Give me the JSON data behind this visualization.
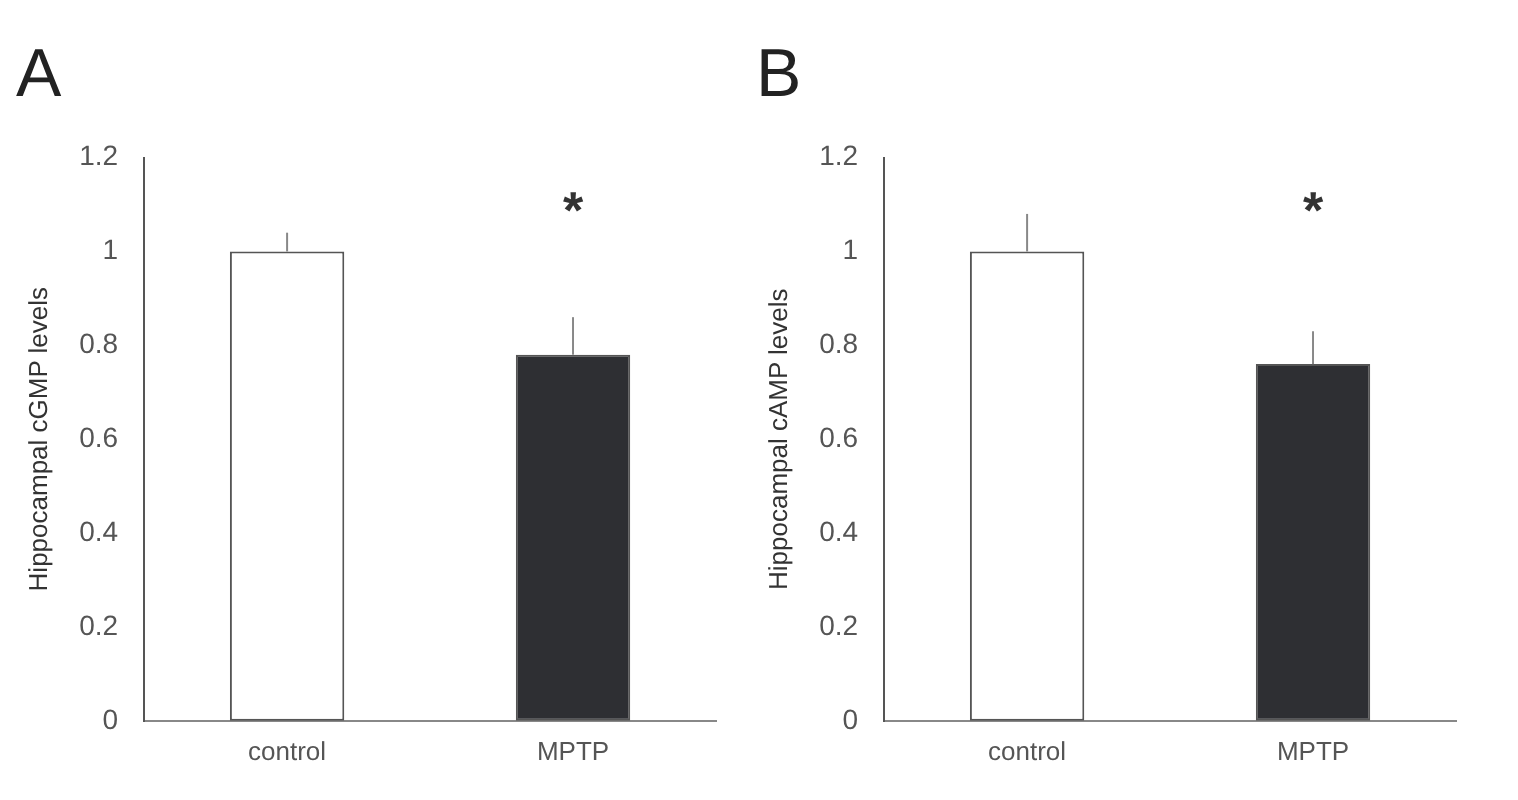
{
  "chart_data": [
    {
      "type": "bar",
      "title": "A",
      "ylabel": "Hippocampal cGMP levels",
      "categories": [
        "control",
        "MPTP"
      ],
      "values": [
        1.0,
        0.78
      ],
      "colors": [
        "#ffffff",
        "#2e2f33"
      ],
      "errors": [
        [
          1.0,
          1.04
        ],
        [
          0.78,
          0.86
        ]
      ],
      "ylim": [
        0,
        1.2
      ],
      "yticks": [
        0,
        0.2,
        0.4,
        0.6,
        0.8,
        1,
        1.2
      ],
      "grid": false,
      "legend": false,
      "annotations": [
        "*"
      ]
    },
    {
      "type": "bar",
      "title": "B",
      "ylabel": "Hippocampal cAMP levels",
      "categories": [
        "control",
        "MPTP"
      ],
      "values": [
        1.0,
        0.76
      ],
      "colors": [
        "#ffffff",
        "#2e2f33"
      ],
      "errors": [
        [
          1.0,
          1.08
        ],
        [
          0.76,
          0.83
        ]
      ],
      "ylim": [
        0,
        1.2
      ],
      "yticks": [
        0,
        0.2,
        0.4,
        0.6,
        0.8,
        1,
        1.2
      ],
      "grid": false,
      "legend": false,
      "annotations": [
        "*"
      ]
    }
  ]
}
